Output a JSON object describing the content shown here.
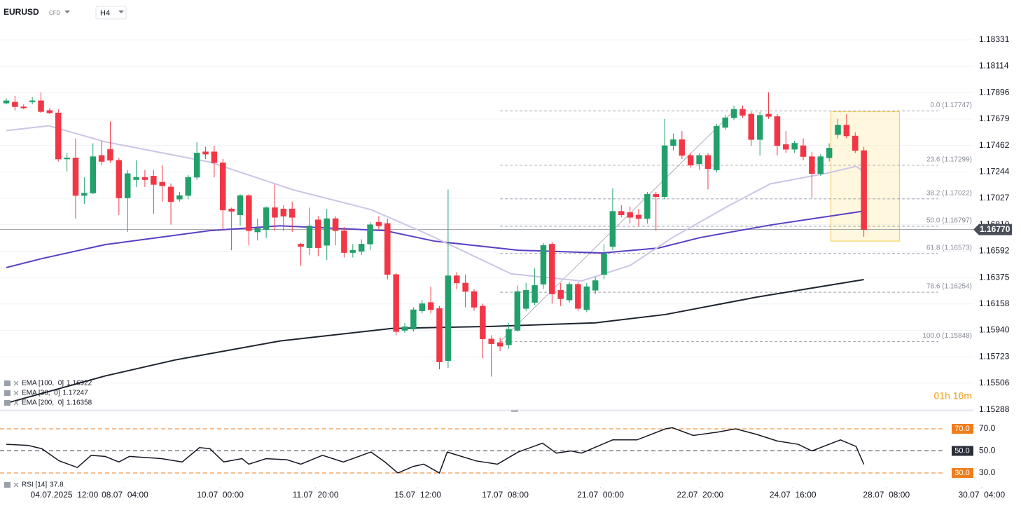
{
  "header": {
    "symbol": "EURUSD",
    "kind": "CFD",
    "timeframe": "H4"
  },
  "chart_data": {
    "type": "candlestick",
    "xlim": [
      -0.73,
      117.14
    ],
    "ylim": [
      1.1528,
      1.18486
    ],
    "yticks": [
      1.18331,
      1.18114,
      1.17896,
      1.17679,
      1.17462,
      1.17244,
      1.17027,
      {
        "value": 1.1681,
        "label": "1.16810"
      },
      1.16592,
      1.16375,
      1.16158,
      {
        "value": 1.1594,
        "label": "1.15940"
      },
      1.15723,
      1.15506,
      1.15288
    ],
    "xticks": [
      {
        "value": 6.7,
        "label": "04.07.2025  12:00"
      },
      {
        "value": 13.7,
        "label": "08.07  04:00"
      },
      {
        "value": 24.7,
        "label": "10.07  00:00"
      },
      {
        "value": 35.7,
        "label": "11.07  20:00"
      },
      {
        "value": 47.5,
        "label": "15.07  12:00"
      },
      {
        "value": 57.6,
        "label": "17.07  08:00"
      },
      {
        "value": 68.6,
        "label": "21.07  00:00"
      },
      {
        "value": 80.1,
        "label": "22.07  20:00"
      },
      {
        "value": 90.8,
        "label": "24.07  16:00"
      },
      {
        "value": 101.6,
        "label": "28.07  08:00"
      },
      {
        "value": 112.6,
        "label": "30.07  04:00"
      }
    ],
    "grid": true,
    "up_color": "#22a06b",
    "down_color": "#f23645",
    "candles": {
      "open": [
        1.1781,
        1.1782,
        1.1778,
        1.1782,
        1.1783,
        1.1775,
        1.1773,
        1.1735,
        1.1736,
        1.1705,
        1.1707,
        1.1738,
        1.1743,
        1.1734,
        1.1703,
        1.1718,
        1.172,
        1.1721,
        1.1716,
        1.1712,
        1.1702,
        1.1705,
        1.172,
        1.1741,
        1.1741,
        1.1732,
        1.1694,
        1.1689,
        1.1705,
        1.1675,
        1.1677,
        1.1695,
        1.1694,
        1.1694,
        1.1665,
        1.1662,
        1.1685,
        1.1664,
        1.1686,
        1.1676,
        1.1658,
        1.1659,
        1.1665,
        1.1683,
        1.1682,
        1.164,
        1.1594,
        1.1595,
        1.161,
        1.1617,
        1.1612,
        1.1569,
        1.1639,
        1.1633,
        1.1626,
        1.1614,
        1.1587,
        1.1584,
        1.1582,
        1.1594,
        1.1612,
        1.1617,
        1.1632,
        1.1665,
        1.1627,
        1.1619,
        1.1632,
        1.1611,
        1.1627,
        1.164,
        1.1663,
        1.1692,
        1.1691,
        1.1689,
        1.1686,
        1.1706,
        1.1704,
        1.1746,
        1.1751,
        1.1738,
        1.1731,
        1.1738,
        1.1726,
        1.1761,
        1.1769,
        1.1776,
        1.1772,
        1.1751,
        1.1772,
        1.177,
        1.1747,
        1.1743,
        1.1746,
        1.1737,
        1.1723,
        1.1736,
        1.1755,
        1.1763,
        1.1754,
        1.1742
      ],
      "high": [
        1.1785,
        1.1787,
        1.178,
        1.1786,
        1.179,
        1.1777,
        1.1776,
        1.174,
        1.1752,
        1.172,
        1.1748,
        1.175,
        1.1766,
        1.1736,
        1.1726,
        1.1734,
        1.1726,
        1.1726,
        1.173,
        1.1715,
        1.1708,
        1.1722,
        1.1749,
        1.1745,
        1.1746,
        1.1735,
        1.1695,
        1.1706,
        1.1706,
        1.1686,
        1.1696,
        1.1714,
        1.1697,
        1.17,
        1.1666,
        1.1695,
        1.1688,
        1.1694,
        1.1688,
        1.1679,
        1.1665,
        1.1669,
        1.1683,
        1.1688,
        1.1686,
        1.1641,
        1.16,
        1.1613,
        1.1619,
        1.163,
        1.1614,
        1.171,
        1.1642,
        1.164,
        1.1628,
        1.1616,
        1.159,
        1.1588,
        1.16,
        1.1631,
        1.1633,
        1.1645,
        1.1666,
        1.1667,
        1.1633,
        1.1634,
        1.1634,
        1.1633,
        1.1638,
        1.1665,
        1.1711,
        1.1697,
        1.1696,
        1.1694,
        1.1708,
        1.1708,
        1.1768,
        1.1756,
        1.1758,
        1.174,
        1.174,
        1.174,
        1.1764,
        1.1771,
        1.1779,
        1.1779,
        1.1774,
        1.1774,
        1.179,
        1.1772,
        1.1758,
        1.175,
        1.1752,
        1.1741,
        1.1739,
        1.1748,
        1.1768,
        1.1772,
        1.1757,
        1.1745
      ],
      "low": [
        1.178,
        1.1775,
        1.1776,
        1.178,
        1.1773,
        1.1772,
        1.1733,
        1.1725,
        1.1686,
        1.1698,
        1.1706,
        1.173,
        1.1732,
        1.1689,
        1.1675,
        1.1712,
        1.1712,
        1.169,
        1.17,
        1.1681,
        1.17,
        1.1702,
        1.1718,
        1.1735,
        1.172,
        1.1677,
        1.166,
        1.168,
        1.1664,
        1.1668,
        1.167,
        1.1676,
        1.1676,
        1.1675,
        1.1647,
        1.1656,
        1.1655,
        1.1652,
        1.1664,
        1.1654,
        1.1654,
        1.1656,
        1.166,
        1.1677,
        1.1636,
        1.159,
        1.1592,
        1.1593,
        1.1608,
        1.1608,
        1.1562,
        1.1563,
        1.1628,
        1.1613,
        1.161,
        1.1571,
        1.1556,
        1.1577,
        1.1579,
        1.1593,
        1.161,
        1.1615,
        1.1628,
        1.1616,
        1.1614,
        1.1617,
        1.161,
        1.1609,
        1.1624,
        1.1636,
        1.166,
        1.1687,
        1.1682,
        1.168,
        1.1682,
        1.1676,
        1.1702,
        1.1742,
        1.1735,
        1.1728,
        1.1726,
        1.171,
        1.1724,
        1.1759,
        1.1767,
        1.1769,
        1.1746,
        1.1738,
        1.1768,
        1.1738,
        1.174,
        1.174,
        1.1734,
        1.1703,
        1.1721,
        1.1733,
        1.1752,
        1.1752,
        1.174,
        1.1671
      ],
      "close": [
        1.1783,
        1.1778,
        1.1777,
        1.1783,
        1.1774,
        1.1773,
        1.1735,
        1.1736,
        1.1705,
        1.1707,
        1.1737,
        1.1733,
        1.1734,
        1.1703,
        1.1723,
        1.172,
        1.1718,
        1.1714,
        1.1713,
        1.17,
        1.1705,
        1.172,
        1.174,
        1.1739,
        1.1732,
        1.1693,
        1.1692,
        1.1705,
        1.1676,
        1.1678,
        1.1695,
        1.1687,
        1.1688,
        1.1687,
        1.1663,
        1.168,
        1.1662,
        1.1686,
        1.1676,
        1.1658,
        1.166,
        1.1665,
        1.1681,
        1.168,
        1.164,
        1.1593,
        1.1597,
        1.1611,
        1.1616,
        1.1611,
        1.1568,
        1.1639,
        1.1633,
        1.1626,
        1.1613,
        1.1587,
        1.1583,
        1.1581,
        1.1595,
        1.1626,
        1.1627,
        1.1631,
        1.1664,
        1.1624,
        1.162,
        1.1632,
        1.1612,
        1.163,
        1.1635,
        1.1657,
        1.1692,
        1.1689,
        1.1687,
        1.1686,
        1.1706,
        1.1704,
        1.1746,
        1.1751,
        1.1738,
        1.173,
        1.1738,
        1.1727,
        1.1762,
        1.1769,
        1.1776,
        1.1771,
        1.1751,
        1.1771,
        1.177,
        1.1746,
        1.1743,
        1.1748,
        1.1737,
        1.1723,
        1.1737,
        1.1744,
        1.1763,
        1.1754,
        1.1742,
        1.1677
      ]
    },
    "series": [
      {
        "name": "EMA [100,  0]",
        "current": 1.16922,
        "color": "#5b3fc4",
        "x": [
          0,
          4.1,
          11.4,
          23.5,
          31.6,
          43.7,
          49.4,
          59.1,
          68.8,
          75.3,
          80.1,
          88.2,
          99
        ],
        "values": [
          1.16457,
          1.16531,
          1.16646,
          1.16761,
          1.16801,
          1.16761,
          1.16675,
          1.166,
          1.16577,
          1.16618,
          1.16704,
          1.16807,
          1.16922
        ]
      },
      {
        "name": "EMA [30,  0]",
        "current": 1.17247,
        "color": "#cdc4e6",
        "x": [
          0,
          4.9,
          11.4,
          23.5,
          33.2,
          42.1,
          48.6,
          58.3,
          66.4,
          72,
          76.9,
          83.3,
          88.2,
          94.7,
          98.1,
          99
        ],
        "values": [
          1.17584,
          1.17624,
          1.17492,
          1.17325,
          1.17095,
          1.16934,
          1.16733,
          1.16405,
          1.16347,
          1.16474,
          1.16704,
          1.16962,
          1.17146,
          1.17233,
          1.1729,
          1.17247
        ]
      },
      {
        "name": "EMA [200,  0]",
        "current": 1.16358,
        "color": "#1e2430",
        "x": [
          0,
          11.4,
          19.5,
          31.6,
          44.5,
          55.9,
          68,
          76.1,
          86.7,
          99
        ],
        "values": [
          1.15341,
          1.15565,
          1.15697,
          1.15853,
          1.15956,
          1.15973,
          1.16002,
          1.16071,
          1.16215,
          1.16358
        ]
      }
    ],
    "fib_x": [
      57,
      84
    ],
    "fib_levels": [
      {
        "label": "0.0 (1.17747)",
        "value": 1.17747
      },
      {
        "label": "23.6 (1.17299)",
        "value": 1.17299
      },
      {
        "label": "38.2 (1.17022)",
        "value": 1.17022
      },
      {
        "label": "50.0 (1.16797)",
        "value": 1.16797
      },
      {
        "label": "61.8 (1.16573)",
        "value": 1.16573
      },
      {
        "label": "78.6 (1.16254)",
        "value": 1.16254
      },
      {
        "label": "100.0 (1.15848)",
        "value": 1.15848
      }
    ],
    "highlight": {
      "xlim": [
        95.2,
        103.1
      ],
      "ylim": [
        1.16675,
        1.17739
      ]
    },
    "current_price": {
      "value": 1.1677,
      "label": "1.16770"
    },
    "countdown": "01h 16m",
    "rsi": {
      "name": "RSI [14]",
      "current": 37.8,
      "color": "#131722",
      "ylim": [
        20.5,
        80.8
      ],
      "levels": [
        {
          "value": 70,
          "label": "70.0",
          "color": "#f07d1a"
        },
        {
          "value": 50,
          "label": "50.0",
          "color": "#2a2e39"
        },
        {
          "value": 30,
          "label": "30.0",
          "color": "#f07d1a"
        }
      ],
      "x": [
        0,
        2.5,
        4.1,
        6.1,
        8.2,
        9.8,
        11.4,
        13,
        14.2,
        17.9,
        20.3,
        22.3,
        23.5,
        25.1,
        27.2,
        28,
        30,
        32.4,
        34,
        36.5,
        38.9,
        42.1,
        43.7,
        45.2,
        47,
        48.2,
        50,
        50.9,
        54.2,
        56.7,
        59.1,
        61.9,
        63.5,
        65.2,
        66.4,
        70,
        72.8,
        76.1,
        76.9,
        79.3,
        82.1,
        84.2,
        86.6,
        89,
        91.4,
        93,
        96.3,
        98.1,
        99
      ],
      "values": [
        56,
        55,
        52,
        41,
        35,
        46,
        45,
        40,
        45,
        43,
        40,
        53,
        52,
        40,
        43,
        38,
        43,
        42,
        38,
        46,
        40,
        49,
        40,
        30,
        36,
        38,
        30,
        49,
        41,
        38,
        49,
        57,
        48,
        50,
        48,
        60,
        60,
        70,
        71,
        64,
        67,
        70,
        65,
        59,
        56,
        50,
        60,
        54,
        37.8
      ]
    }
  }
}
